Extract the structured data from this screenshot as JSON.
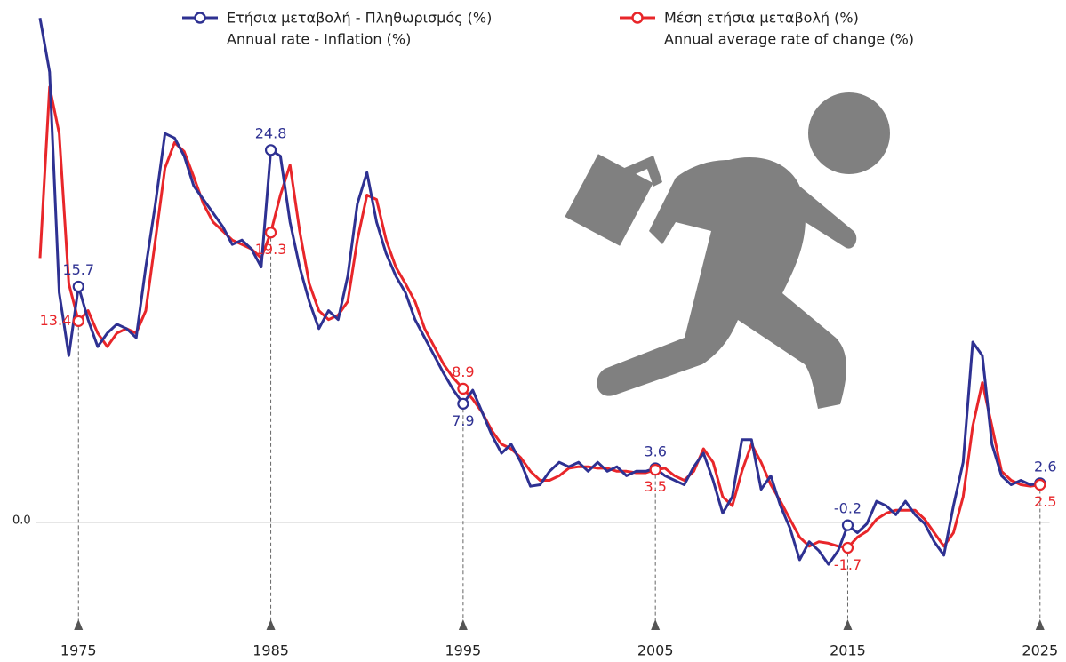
{
  "chart_data": {
    "type": "line",
    "x": [
      1973,
      1973.5,
      1974,
      1974.5,
      1975,
      1975.5,
      1976,
      1976.5,
      1977,
      1977.5,
      1978,
      1978.5,
      1979,
      1979.5,
      1980,
      1980.5,
      1981,
      1981.5,
      1982,
      1982.5,
      1983,
      1983.5,
      1984,
      1984.5,
      1985,
      1985.5,
      1986,
      1986.5,
      1987,
      1987.5,
      1988,
      1988.5,
      1989,
      1989.5,
      1990,
      1990.5,
      1991,
      1991.5,
      1992,
      1992.5,
      1993,
      1993.5,
      1994,
      1994.5,
      1995,
      1995.5,
      1996,
      1996.5,
      1997,
      1997.5,
      1998,
      1998.5,
      1999,
      1999.5,
      2000,
      2000.5,
      2001,
      2001.5,
      2002,
      2002.5,
      2003,
      2003.5,
      2004,
      2004.5,
      2005,
      2005.5,
      2006,
      2006.5,
      2007,
      2007.5,
      2008,
      2008.5,
      2009,
      2009.5,
      2010,
      2010.5,
      2011,
      2011.5,
      2012,
      2012.5,
      2013,
      2013.5,
      2014,
      2014.5,
      2015,
      2015.5,
      2016,
      2016.5,
      2017,
      2017.5,
      2018,
      2018.5,
      2019,
      2019.5,
      2020,
      2020.5,
      2021,
      2021.5,
      2022,
      2022.5,
      2023,
      2023.5,
      2024,
      2024.5,
      2025
    ],
    "series": [
      {
        "name": "Ετήσια μεταβολή - Πληθωρισμός (%)",
        "subname": "Annual rate - Inflation (%)",
        "color": "#2e3192",
        "values": [
          33.6,
          30.0,
          15.3,
          11.1,
          15.7,
          13.5,
          11.7,
          12.6,
          13.2,
          12.9,
          12.3,
          17.0,
          21.2,
          25.9,
          25.6,
          24.4,
          22.4,
          21.5,
          20.6,
          19.7,
          18.5,
          18.8,
          18.2,
          17.0,
          24.8,
          24.4,
          20.0,
          17.0,
          14.7,
          12.9,
          14.1,
          13.5,
          16.4,
          21.2,
          23.3,
          20.0,
          17.9,
          16.4,
          15.3,
          13.5,
          12.3,
          11.1,
          9.9,
          8.8,
          7.9,
          8.8,
          7.3,
          5.8,
          4.6,
          5.2,
          4.0,
          2.4,
          2.5,
          3.4,
          4.0,
          3.7,
          4.0,
          3.4,
          4.0,
          3.4,
          3.7,
          3.1,
          3.4,
          3.4,
          3.6,
          3.1,
          2.8,
          2.5,
          3.7,
          4.6,
          2.8,
          0.6,
          1.7,
          5.5,
          5.5,
          2.2,
          3.1,
          1.1,
          -0.4,
          -2.5,
          -1.3,
          -1.9,
          -2.8,
          -1.9,
          -0.2,
          -0.7,
          -0.1,
          1.4,
          1.1,
          0.5,
          1.4,
          0.5,
          -0.1,
          -1.3,
          -2.2,
          1.1,
          4.0,
          12.0,
          11.1,
          5.2,
          3.1,
          2.5,
          2.8,
          2.5,
          2.6
        ]
      },
      {
        "name": "Μέση ετήσια μεταβολή (%)",
        "subname": "Annual average rate of change (%)",
        "color": "#e8262a",
        "values": [
          17.6,
          29.0,
          25.9,
          15.9,
          13.4,
          14.1,
          12.6,
          11.7,
          12.6,
          12.9,
          12.6,
          14.1,
          18.8,
          23.6,
          25.3,
          24.7,
          23.0,
          21.2,
          20.0,
          19.4,
          18.8,
          18.5,
          18.2,
          17.6,
          19.3,
          21.8,
          23.8,
          19.4,
          15.9,
          14.1,
          13.5,
          13.8,
          14.7,
          18.8,
          21.8,
          21.5,
          18.8,
          17.0,
          15.9,
          14.7,
          12.9,
          11.7,
          10.5,
          9.6,
          8.9,
          8.2,
          7.3,
          6.1,
          5.2,
          4.9,
          4.3,
          3.4,
          2.8,
          2.8,
          3.1,
          3.6,
          3.7,
          3.7,
          3.6,
          3.6,
          3.4,
          3.4,
          3.3,
          3.3,
          3.5,
          3.6,
          3.1,
          2.8,
          3.4,
          4.9,
          4.0,
          1.7,
          1.1,
          3.4,
          5.2,
          4.0,
          2.5,
          1.4,
          0.2,
          -1.0,
          -1.6,
          -1.3,
          -1.4,
          -1.6,
          -1.7,
          -1.0,
          -0.6,
          0.2,
          0.6,
          0.8,
          0.8,
          0.8,
          0.2,
          -0.7,
          -1.6,
          -0.7,
          1.7,
          6.4,
          9.3,
          6.4,
          3.4,
          2.8,
          2.5,
          2.4,
          2.5
        ]
      }
    ],
    "xlim": [
      1973,
      2025.5
    ],
    "xticks": [
      1975,
      1985,
      1995,
      2005,
      2015,
      2025
    ],
    "ylim": [
      -7,
      34
    ],
    "yticks": [
      {
        "value": 0,
        "label": "0.0"
      }
    ]
  }
}
